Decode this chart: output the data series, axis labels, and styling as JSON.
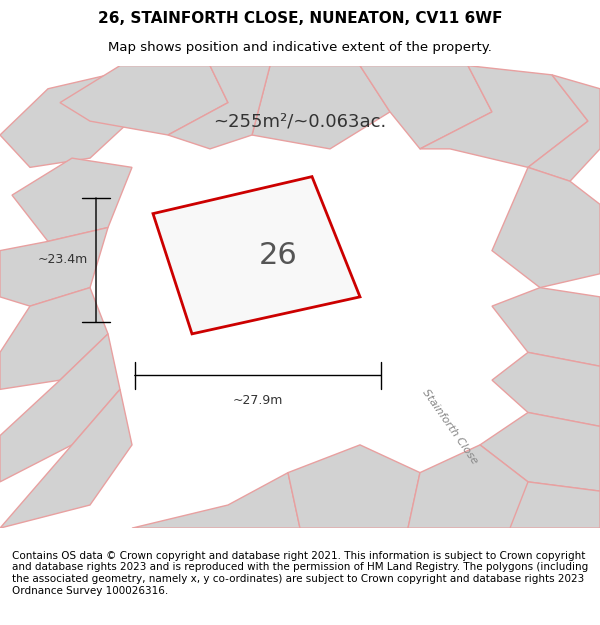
{
  "title_line1": "26, STAINFORTH CLOSE, NUNEATON, CV11 6WF",
  "title_line2": "Map shows position and indicative extent of the property.",
  "footer_text": "Contains OS data © Crown copyright and database right 2021. This information is subject to Crown copyright and database rights 2023 and is reproduced with the permission of HM Land Registry. The polygons (including the associated geometry, namely x, y co-ordinates) are subject to Crown copyright and database rights 2023 Ordnance Survey 100026316.",
  "area_label": "~255m²/~0.063ac.",
  "plot_number": "26",
  "dim_width": "~27.9m",
  "dim_height": "~23.4m",
  "bg_color": "#e8e8e8",
  "map_bg": "#f0f0f0",
  "highlight_color": "#cc0000",
  "road_label": "Stainforth Close",
  "title_fontsize": 11,
  "subtitle_fontsize": 9.5,
  "footer_fontsize": 7.5
}
